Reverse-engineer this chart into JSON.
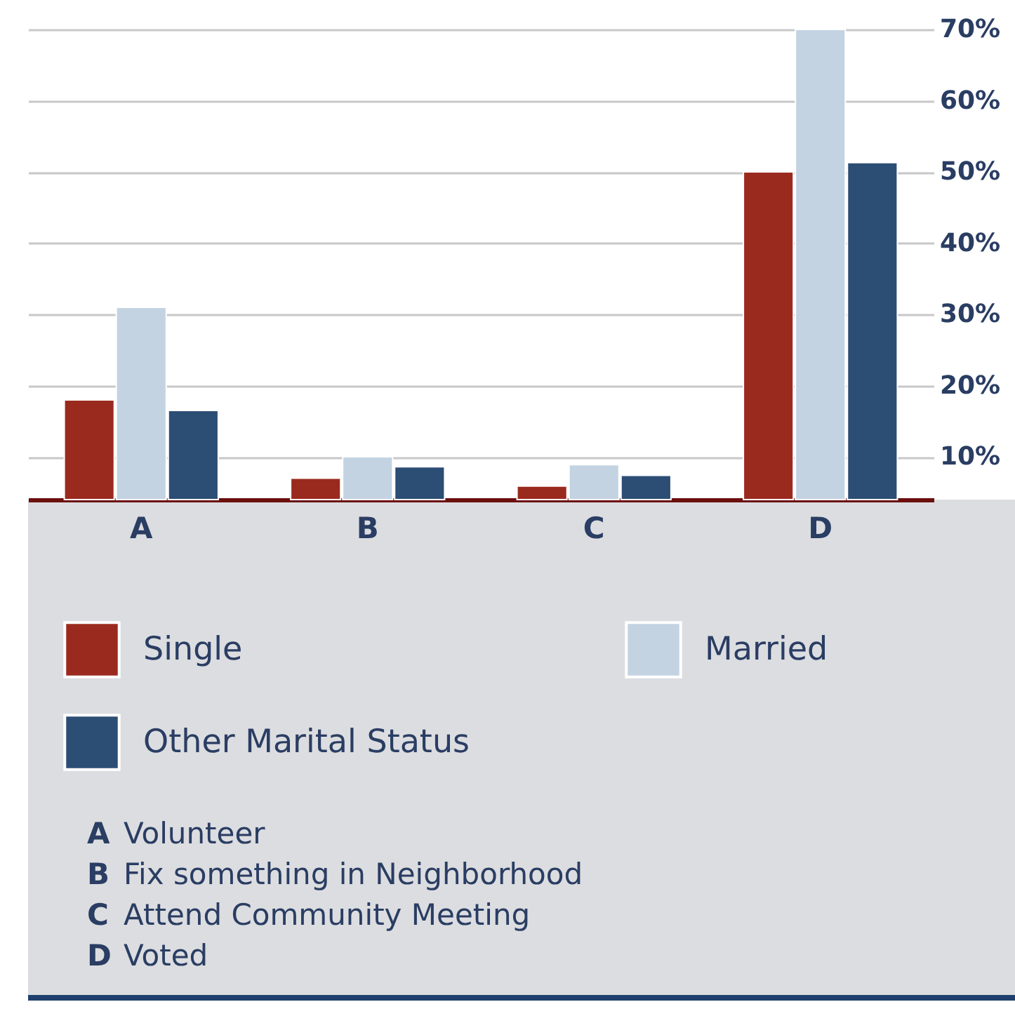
{
  "chart_data": {
    "type": "bar",
    "categories": [
      "A",
      "B",
      "C",
      "D"
    ],
    "series": [
      {
        "name": "Single",
        "color": "#9b2a1e",
        "values": [
          18,
          7,
          5.9,
          50
        ]
      },
      {
        "name": "Married",
        "color": "#c3d3e2",
        "values": [
          31,
          10,
          8.9,
          70
        ]
      },
      {
        "name": "Other Marital Status",
        "color": "#2c4d74",
        "values": [
          16.5,
          8.6,
          7.4,
          51.3
        ]
      }
    ],
    "ylim": [
      4,
      70
    ],
    "yticks": [
      {
        "value": 10,
        "label": "10%"
      },
      {
        "value": 20,
        "label": "20%"
      },
      {
        "value": 30,
        "label": "30%"
      },
      {
        "value": 40,
        "label": "40%"
      },
      {
        "value": 50,
        "label": "50%"
      },
      {
        "value": 60,
        "label": "60%"
      },
      {
        "value": 70,
        "label": "70%"
      }
    ],
    "grid": "y",
    "legend": "bottom",
    "annotations": [
      "A Volunteer",
      "B Fix something in Neighborhood",
      "C Attend Community Meeting",
      "D Voted"
    ]
  }
}
